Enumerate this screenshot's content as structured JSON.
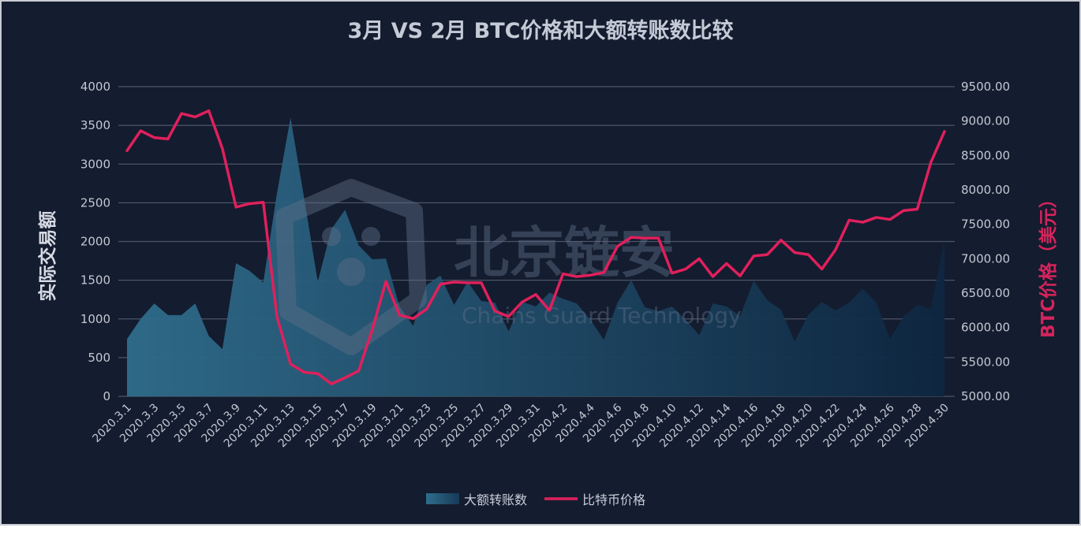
{
  "chart_data": {
    "type": "area+line",
    "title": "3月 VS 2月 BTC价格和大额转账数比较",
    "ylabel_left": "实际交易额",
    "ylabel_right": "BTC价格（美元）",
    "ylim_left": [
      0,
      4000
    ],
    "ylim_right": [
      5000,
      9500
    ],
    "yticks_left": [
      "0",
      "500",
      "1000",
      "1500",
      "2000",
      "2500",
      "3000",
      "3500",
      "4000"
    ],
    "yticks_right": [
      "5000.00",
      "5500.00",
      "6000.00",
      "6500.00",
      "7000.00",
      "7500.00",
      "8000.00",
      "8500.00",
      "9000.00",
      "9500.00"
    ],
    "categories": [
      "2020.3.1",
      "2020.3.2",
      "2020.3.3",
      "2020.3.4",
      "2020.3.5",
      "2020.3.6",
      "2020.3.7",
      "2020.3.8",
      "2020.3.9",
      "2020.3.10",
      "2020.3.11",
      "2020.3.12",
      "2020.3.13",
      "2020.3.14",
      "2020.3.15",
      "2020.3.16",
      "2020.3.17",
      "2020.3.18",
      "2020.3.19",
      "2020.3.20",
      "2020.3.21",
      "2020.3.22",
      "2020.3.23",
      "2020.3.24",
      "2020.3.25",
      "2020.3.26",
      "2020.3.27",
      "2020.3.28",
      "2020.3.29",
      "2020.3.30",
      "2020.3.31",
      "2020.4.1",
      "2020.4.2",
      "2020.4.3",
      "2020.4.4",
      "2020.4.5",
      "2020.4.6",
      "2020.4.7",
      "2020.4.8",
      "2020.4.9",
      "2020.4.10",
      "2020.4.11",
      "2020.4.12",
      "2020.4.13",
      "2020.4.14",
      "2020.4.15",
      "2020.4.16",
      "2020.4.17",
      "2020.4.18",
      "2020.4.19",
      "2020.4.20",
      "2020.4.21",
      "2020.4.22",
      "2020.4.23",
      "2020.4.24",
      "2020.4.25",
      "2020.4.26",
      "2020.4.27",
      "2020.4.28",
      "2020.4.29",
      "2020.4.30"
    ],
    "xtick_labels": [
      "2020.3.1",
      "2020.3.3",
      "2020.3.5",
      "2020.3.7",
      "2020.3.9",
      "2020.3.11",
      "2020.3.13",
      "2020.3.15",
      "2020.3.17",
      "2020.3.19",
      "2020.3.21",
      "2020.3.23",
      "2020.3.25",
      "2020.3.27",
      "2020.3.29",
      "2020.3.31",
      "2020.4.2",
      "2020.4.4",
      "2020.4.6",
      "2020.4.8",
      "2020.4.10",
      "2020.4.12",
      "2020.4.14",
      "2020.4.16",
      "2020.4.18",
      "2020.4.20",
      "2020.4.22",
      "2020.4.24",
      "2020.4.26",
      "2020.4.28",
      "2020.4.30"
    ],
    "series": [
      {
        "name": "大额转账数",
        "type": "area",
        "axis": "left",
        "values": [
          740,
          1000,
          1200,
          1050,
          1050,
          1200,
          780,
          610,
          1720,
          1620,
          1470,
          2620,
          3600,
          2560,
          1480,
          2160,
          2410,
          1950,
          1770,
          1780,
          1160,
          910,
          1440,
          1560,
          1180,
          1480,
          1230,
          1210,
          840,
          1220,
          1160,
          1340,
          1260,
          1200,
          990,
          730,
          1210,
          1500,
          1150,
          1100,
          1160,
          990,
          790,
          1200,
          1160,
          1040,
          1490,
          1240,
          1120,
          710,
          1050,
          1220,
          1110,
          1210,
          1390,
          1210,
          740,
          1030,
          1180,
          1130,
          2020
        ]
      },
      {
        "name": "比特币价格",
        "type": "line",
        "axis": "right",
        "values": [
          8570,
          8860,
          8760,
          8740,
          9110,
          9060,
          9150,
          8600,
          7750,
          7800,
          7820,
          6160,
          5470,
          5350,
          5330,
          5180,
          5270,
          5370,
          5970,
          6670,
          6180,
          6130,
          6270,
          6630,
          6660,
          6650,
          6650,
          6240,
          6160,
          6370,
          6480,
          6250,
          6780,
          6740,
          6760,
          6800,
          7180,
          7310,
          7300,
          7300,
          6790,
          6850,
          7000,
          6740,
          6930,
          6750,
          7040,
          7060,
          7270,
          7090,
          7060,
          6850,
          7130,
          7560,
          7530,
          7600,
          7570,
          7700,
          7720,
          8400,
          8850
        ]
      }
    ],
    "legend": [
      "大额转账数",
      "比特币价格"
    ],
    "legend_position": "bottom-center",
    "watermark": "北京链安",
    "watermark_sub": "Chains Guard Technology",
    "colors": {
      "background": "#141c2f",
      "area_top": "#2c6786",
      "area_bottom": "#0f2b44",
      "line": "#e0205c",
      "grid": "#4b5568"
    }
  }
}
